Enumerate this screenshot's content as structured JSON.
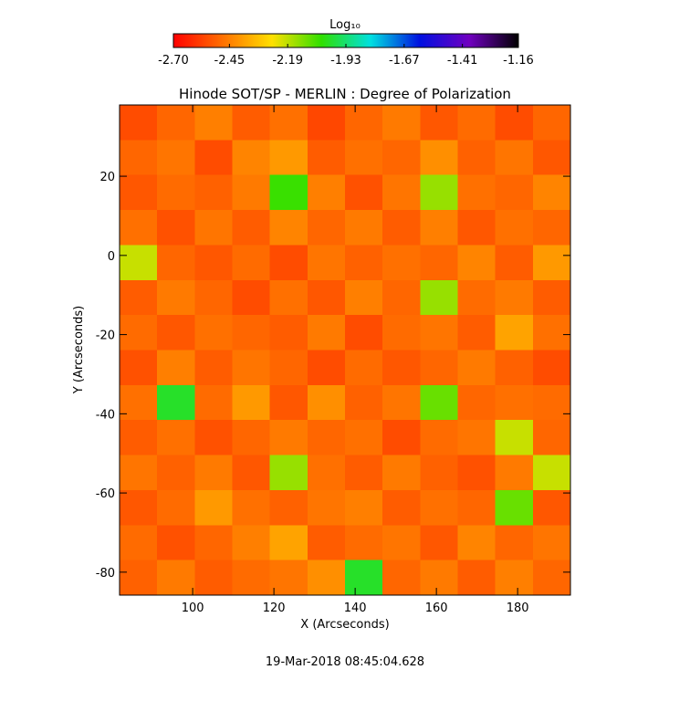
{
  "chart_data": {
    "type": "heatmap",
    "title": "Hinode SOT/SP - MERLIN : Degree of Polarization",
    "xlabel": "X (Arcseconds)",
    "ylabel": "Y (Arcseconds)",
    "footer": "19-Mar-2018 08:45:04.628",
    "colorbar_label": "Log₁₀",
    "colormap": [
      "#ff0000",
      "#ff7000",
      "#ffe000",
      "#30e000",
      "#00e0e0",
      "#0010e0",
      "#7000c0",
      "#000000"
    ],
    "zlim": [
      -2.7,
      -1.16
    ],
    "zticks": [
      {
        "value": -2.7,
        "label": "-2.70"
      },
      {
        "value": -2.45,
        "label": "-2.45"
      },
      {
        "value": -2.19,
        "label": "-2.19"
      },
      {
        "value": -1.93,
        "label": "-1.93"
      },
      {
        "value": -1.67,
        "label": "-1.67"
      },
      {
        "value": -1.41,
        "label": "-1.41"
      },
      {
        "value": -1.16,
        "label": "-1.16"
      }
    ],
    "xlim": [
      82,
      193
    ],
    "ylim": [
      -85.8,
      38
    ],
    "xticks": [
      100,
      120,
      140,
      160,
      180
    ],
    "yticks": [
      20,
      0,
      -20,
      -40,
      -60,
      -80
    ],
    "z": [
      [
        -2.55,
        -2.5,
        -2.45,
        -2.52,
        -2.48,
        -2.56,
        -2.5,
        -2.46,
        -2.53,
        -2.49,
        -2.55,
        -2.5
      ],
      [
        -2.5,
        -2.47,
        -2.55,
        -2.44,
        -2.4,
        -2.52,
        -2.48,
        -2.5,
        -2.42,
        -2.51,
        -2.47,
        -2.53
      ],
      [
        -2.53,
        -2.49,
        -2.51,
        -2.46,
        -2.05,
        -2.45,
        -2.54,
        -2.47,
        -2.15,
        -2.48,
        -2.5,
        -2.44
      ],
      [
        -2.48,
        -2.54,
        -2.47,
        -2.52,
        -2.44,
        -2.5,
        -2.46,
        -2.52,
        -2.45,
        -2.53,
        -2.48,
        -2.5
      ],
      [
        -2.2,
        -2.5,
        -2.53,
        -2.49,
        -2.55,
        -2.47,
        -2.51,
        -2.48,
        -2.5,
        -2.44,
        -2.52,
        -2.4
      ],
      [
        -2.52,
        -2.46,
        -2.5,
        -2.55,
        -2.48,
        -2.53,
        -2.45,
        -2.5,
        -2.15,
        -2.49,
        -2.46,
        -2.52
      ],
      [
        -2.49,
        -2.53,
        -2.48,
        -2.5,
        -2.52,
        -2.46,
        -2.55,
        -2.49,
        -2.47,
        -2.52,
        -2.38,
        -2.48
      ],
      [
        -2.54,
        -2.45,
        -2.52,
        -2.47,
        -2.5,
        -2.55,
        -2.49,
        -2.53,
        -2.5,
        -2.46,
        -2.51,
        -2.55
      ],
      [
        -2.48,
        -2.0,
        -2.49,
        -2.4,
        -2.53,
        -2.42,
        -2.51,
        -2.47,
        -2.1,
        -2.5,
        -2.48,
        -2.49
      ],
      [
        -2.52,
        -2.48,
        -2.54,
        -2.5,
        -2.46,
        -2.5,
        -2.48,
        -2.55,
        -2.49,
        -2.47,
        -2.2,
        -2.5
      ],
      [
        -2.47,
        -2.51,
        -2.46,
        -2.53,
        -2.15,
        -2.48,
        -2.52,
        -2.46,
        -2.51,
        -2.54,
        -2.46,
        -2.2
      ],
      [
        -2.53,
        -2.49,
        -2.4,
        -2.48,
        -2.51,
        -2.47,
        -2.45,
        -2.52,
        -2.48,
        -2.5,
        -2.1,
        -2.53
      ],
      [
        -2.49,
        -2.54,
        -2.5,
        -2.45,
        -2.38,
        -2.52,
        -2.49,
        -2.47,
        -2.53,
        -2.44,
        -2.5,
        -2.47
      ],
      [
        -2.51,
        -2.46,
        -2.52,
        -2.49,
        -2.47,
        -2.42,
        -2.0,
        -2.5,
        -2.46,
        -2.52,
        -2.45,
        -2.5
      ]
    ]
  }
}
